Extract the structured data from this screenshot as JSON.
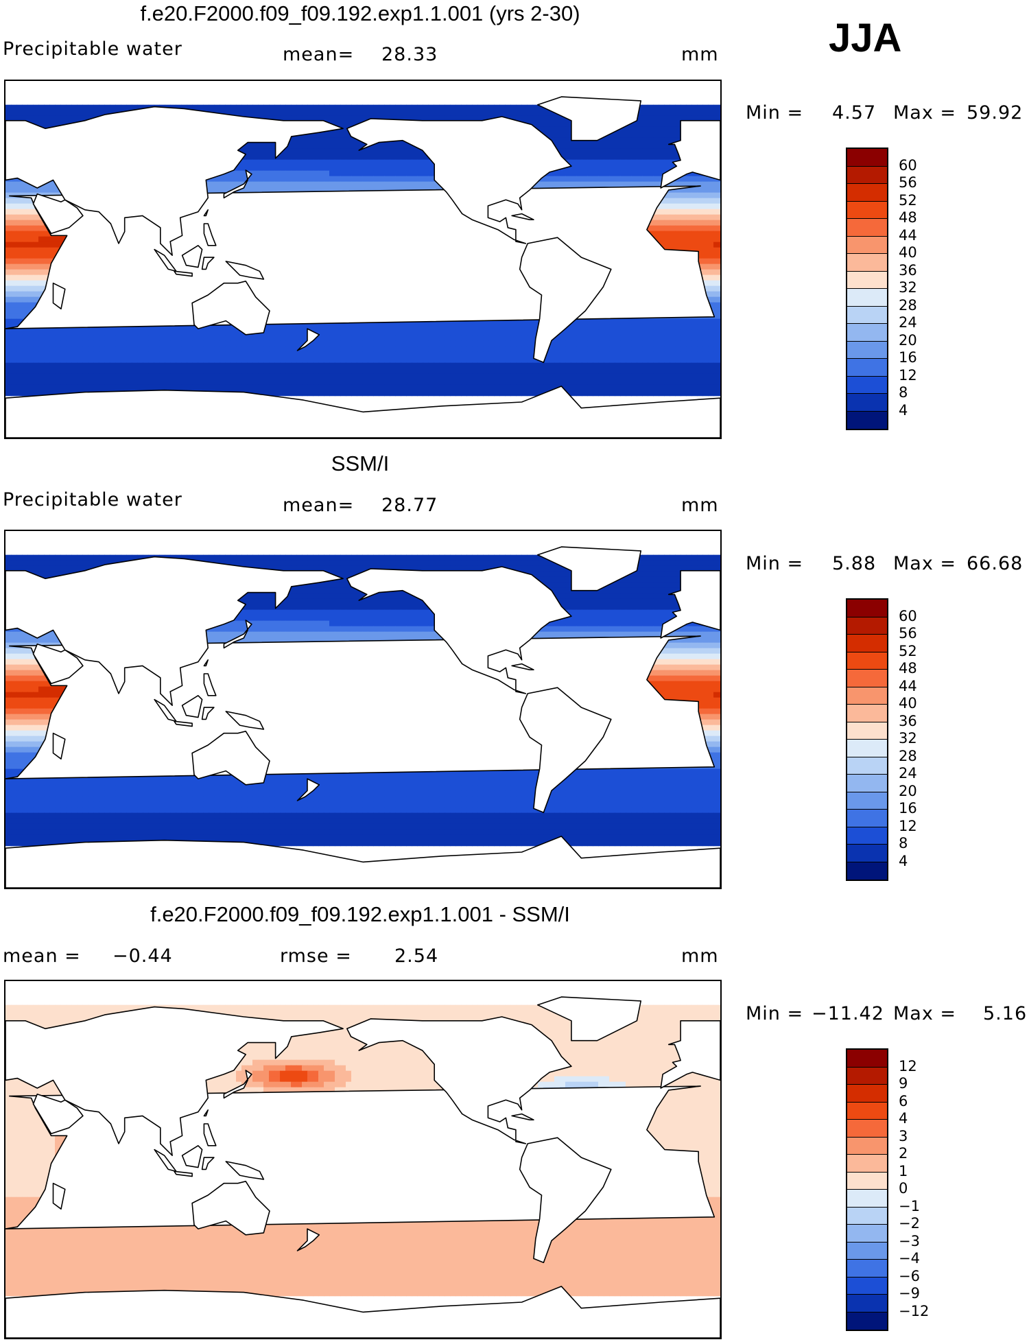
{
  "season": "JJA",
  "units": "mm",
  "panels": [
    {
      "title": "f.e20.F2000.f09_f09.192.exp1.1.001 (yrs 2-30)",
      "left_label": "Precipitable water",
      "stat1_label": "mean=",
      "stat1_value": "28.33",
      "units": "mm",
      "min_label": "Min =",
      "min_value": "4.57",
      "max_label": "Max =",
      "max_value": "59.92",
      "colorbar": {
        "labels": [
          "60",
          "56",
          "52",
          "48",
          "44",
          "40",
          "36",
          "32",
          "28",
          "24",
          "20",
          "16",
          "12",
          "8",
          "4"
        ],
        "colors": [
          "#8b0000",
          "#b41a00",
          "#d42d00",
          "#ed4a12",
          "#f5693a",
          "#f8956d",
          "#fbb99a",
          "#fde0cd",
          "#dceaf8",
          "#b9d3f5",
          "#93b7f0",
          "#6a98ea",
          "#3f73e4",
          "#1c4fd6",
          "#0a33b0",
          "#00157a"
        ]
      },
      "field": {
        "model": "model"
      }
    },
    {
      "title": "SSM/I",
      "left_label": "Precipitable water",
      "stat1_label": "mean=",
      "stat1_value": "28.77",
      "units": "mm",
      "min_label": "Min =",
      "min_value": "5.88",
      "max_label": "Max =",
      "max_value": "66.68",
      "colorbar": {
        "labels": [
          "60",
          "56",
          "52",
          "48",
          "44",
          "40",
          "36",
          "32",
          "28",
          "24",
          "20",
          "16",
          "12",
          "8",
          "4"
        ],
        "colors": [
          "#8b0000",
          "#b41a00",
          "#d42d00",
          "#ed4a12",
          "#f5693a",
          "#f8956d",
          "#fbb99a",
          "#fde0cd",
          "#dceaf8",
          "#b9d3f5",
          "#93b7f0",
          "#6a98ea",
          "#3f73e4",
          "#1c4fd6",
          "#0a33b0",
          "#00157a"
        ]
      },
      "field": {
        "model": "obs"
      }
    },
    {
      "title": "f.e20.F2000.f09_f09.192.exp1.1.001 - SSM/I",
      "left_label": "mean =",
      "left_value": "−0.44",
      "stat1_label": "rmse =",
      "stat1_value": "2.54",
      "units": "mm",
      "min_label": "Min =",
      "min_value": "−11.42",
      "max_label": "Max =",
      "max_value": "5.16",
      "colorbar": {
        "labels": [
          "12",
          "9",
          "6",
          "4",
          "3",
          "2",
          "1",
          "0",
          "−1",
          "−2",
          "−3",
          "−4",
          "−6",
          "−9",
          "−12"
        ],
        "colors": [
          "#8b0000",
          "#b41a00",
          "#d42d00",
          "#ed4a12",
          "#f5693a",
          "#f8956d",
          "#fbb99a",
          "#fde0cd",
          "#dceaf8",
          "#b9d3f5",
          "#93b7f0",
          "#6a98ea",
          "#3f73e4",
          "#1c4fd6",
          "#0a33b0",
          "#00157a"
        ]
      },
      "field": {
        "model": "diff"
      }
    }
  ]
}
